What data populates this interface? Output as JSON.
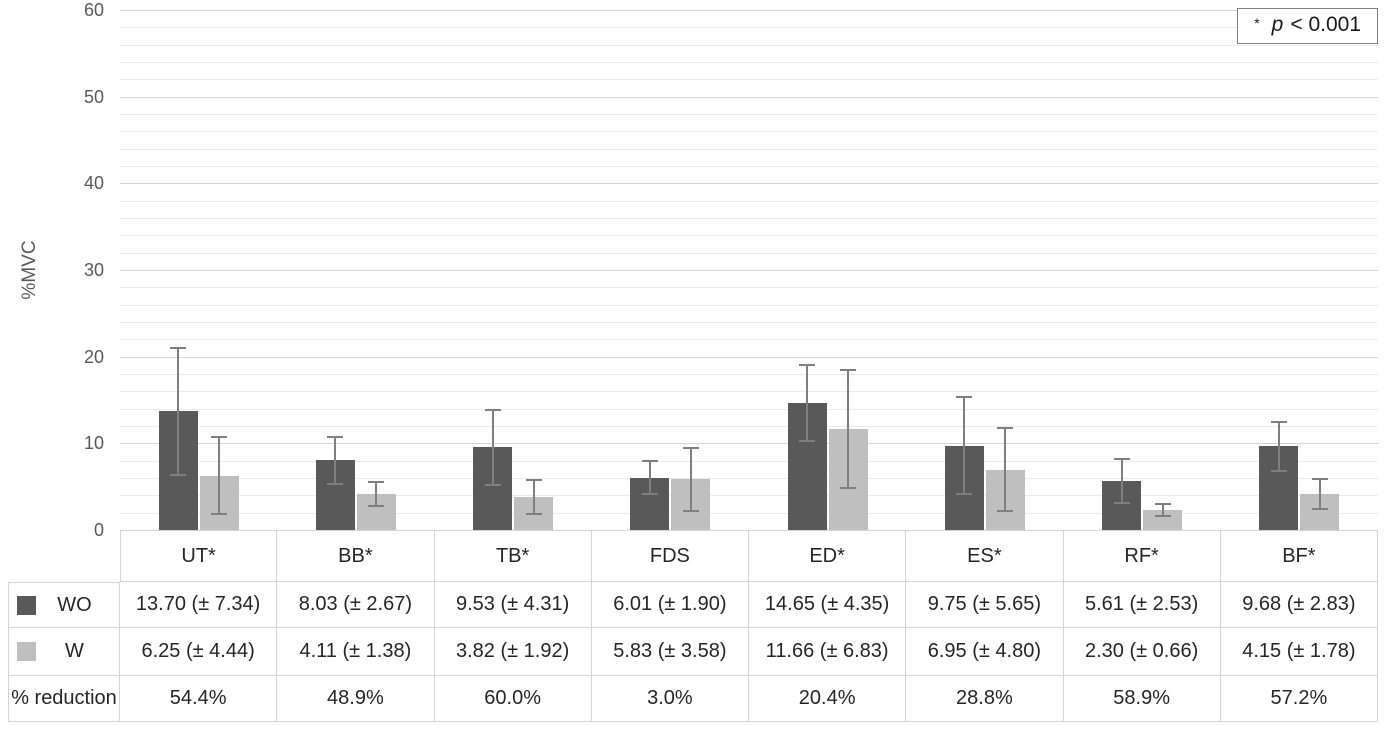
{
  "chart_data": {
    "type": "bar",
    "title": "",
    "xlabel": "",
    "ylabel": "%MVC",
    "ylim": [
      0,
      60
    ],
    "y_major_ticks": [
      0,
      10,
      20,
      30,
      40,
      50,
      60
    ],
    "y_minor_step": 2,
    "grid": "horizontal",
    "legend_position": "top-right",
    "error_bars": "mean ± SD, with caps",
    "categories": [
      "UT*",
      "BB*",
      "TB*",
      "FDS",
      "ED*",
      "ES*",
      "RF*",
      "BF*"
    ],
    "series": [
      {
        "name": "WO",
        "color": "#595959",
        "values": [
          13.7,
          8.03,
          9.53,
          6.01,
          14.65,
          9.75,
          5.61,
          9.68
        ],
        "sd": [
          7.34,
          2.67,
          4.31,
          1.9,
          4.35,
          5.65,
          2.53,
          2.83
        ]
      },
      {
        "name": "W",
        "color": "#bfbfbf",
        "values": [
          6.25,
          4.11,
          3.82,
          5.83,
          11.66,
          6.95,
          2.3,
          4.15
        ],
        "sd": [
          4.44,
          1.38,
          1.92,
          3.58,
          6.83,
          4.8,
          0.66,
          1.78
        ]
      }
    ],
    "pct_reduction": [
      "54.4%",
      "48.9%",
      "60.0%",
      "3.0%",
      "20.4%",
      "28.8%",
      "58.9%",
      "57.2%"
    ]
  },
  "legend": {
    "star": "*",
    "p": "p",
    "rest": "< 0.001"
  },
  "table": {
    "rows": [
      {
        "label": "WO",
        "swatch": "#595959",
        "cells": [
          "13.70 (± 7.34)",
          "8.03 (± 2.67)",
          "9.53 (± 4.31)",
          "6.01 (± 1.90)",
          "14.65 (± 4.35)",
          "9.75 (± 5.65)",
          "5.61 (± 2.53)",
          "9.68 (± 2.83)"
        ]
      },
      {
        "label": "W",
        "swatch": "#bfbfbf",
        "cells": [
          "6.25 (± 4.44)",
          "4.11 (± 1.38)",
          "3.82 (± 1.92)",
          "5.83 (± 3.58)",
          "11.66 (± 6.83)",
          "6.95 (± 4.80)",
          "2.30 (± 0.66)",
          "4.15 (± 1.78)"
        ]
      },
      {
        "label": "% reduction",
        "swatch": null,
        "cells": [
          "54.4%",
          "48.9%",
          "60.0%",
          "3.0%",
          "20.4%",
          "28.8%",
          "58.9%",
          "57.2%"
        ]
      }
    ]
  },
  "colors": {
    "bar_dark": "#595959",
    "bar_light": "#bfbfbf",
    "error_bar": "#7f7f7f",
    "grid_major": "#d6d6d6",
    "grid_minor": "#ebebeb",
    "table_border": "#d4d4d4",
    "axis_text": "#595959",
    "table_text": "#262626"
  }
}
